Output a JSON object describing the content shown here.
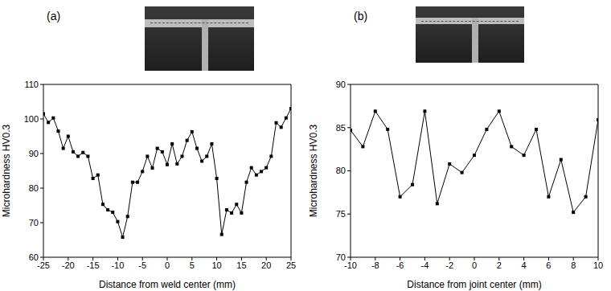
{
  "chart_data": [
    {
      "type": "line",
      "title": "(a)",
      "x_label": "Distance from weld center (mm)",
      "y_label": "Microhardness HV0.3",
      "x": [
        -25,
        -24,
        -23,
        -22,
        -21,
        -20,
        -19,
        -18,
        -17,
        -16,
        -15,
        -14,
        -13,
        -12,
        -11,
        -10,
        -9,
        -8,
        -7,
        -6,
        -5,
        -4,
        -3,
        -2,
        -1,
        0,
        1,
        2,
        3,
        4,
        5,
        6,
        7,
        8,
        9,
        10,
        11,
        12,
        13,
        14,
        15,
        16,
        17,
        18,
        19,
        20,
        21,
        22,
        23,
        24,
        25
      ],
      "values": [
        101.5,
        99,
        100.3,
        96.5,
        91.5,
        95,
        90.5,
        89.2,
        90.3,
        89.2,
        82.8,
        83.8,
        75.3,
        73.7,
        73,
        70.3,
        65.8,
        71.8,
        81.7,
        81.7,
        84.8,
        89.2,
        85.8,
        91.5,
        90.5,
        86.8,
        92.8,
        87,
        89.2,
        93.8,
        96.3,
        91.5,
        87.8,
        89.2,
        92.8,
        82.8,
        66.6,
        73.7,
        72.8,
        75.3,
        72.8,
        81.7,
        85.9,
        83.8,
        84.8,
        85.9,
        89.2,
        98.9,
        97.6,
        100.3,
        103
      ],
      "color": "#000000",
      "marker": "square",
      "xlim": [
        -25,
        25
      ],
      "xticks": [
        -25,
        -20,
        -15,
        -10,
        -5,
        0,
        5,
        10,
        15,
        20,
        25
      ],
      "ylim": [
        60,
        110
      ],
      "yticks": [
        60,
        70,
        80,
        90,
        100,
        110
      ],
      "grid": false
    },
    {
      "type": "line",
      "title": "(b)",
      "x_label": "Distance from joint center (mm)",
      "y_label": "Microhardness HV0.3",
      "x": [
        -10,
        -9,
        -8,
        -7,
        -6,
        -5,
        -4,
        -3,
        -2,
        -1,
        0,
        1,
        2,
        3,
        4,
        5,
        6,
        7,
        8,
        9,
        10
      ],
      "values": [
        84.7,
        82.8,
        86.9,
        84.8,
        77,
        78.4,
        86.9,
        76.2,
        80.8,
        79.8,
        81.8,
        84.8,
        86.9,
        82.8,
        81.8,
        84.8,
        77,
        81.3,
        75.2,
        77,
        85.9
      ],
      "color": "#000000",
      "marker": "square",
      "xlim": [
        -10,
        10
      ],
      "xticks": [
        -10,
        -8,
        -6,
        -4,
        -2,
        0,
        2,
        4,
        6,
        8,
        10
      ],
      "ylim": [
        70,
        90
      ],
      "yticks": [
        70,
        75,
        80,
        85,
        90
      ],
      "grid": false
    }
  ]
}
